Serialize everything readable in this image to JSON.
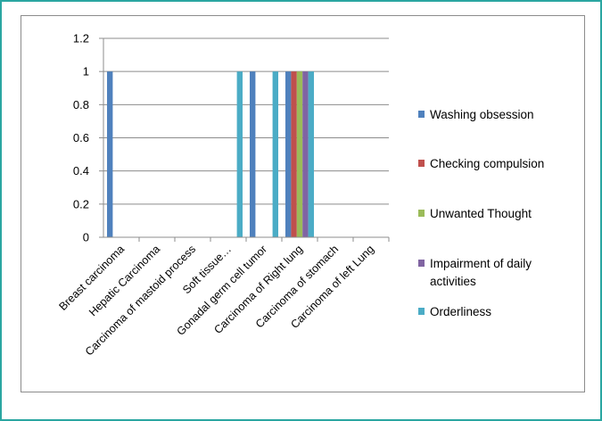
{
  "chart_data": {
    "type": "bar",
    "title": "",
    "xlabel": "",
    "ylabel": "",
    "ylim": [
      0,
      1.2
    ],
    "yticks": [
      "0",
      "0.2",
      "0.4",
      "0.6",
      "0.8",
      "1",
      "1.2"
    ],
    "grid": true,
    "legend_position": "right",
    "categories": [
      "Breast carcinoma",
      "Hepatic Carcinoma",
      "Carcinoma of mastoid  process",
      "Soft tissue…",
      "Gonadal germ cell tumor",
      "Carcinoma of Right lung",
      "Carcinoma of stomach",
      "Carcinoma of left Lung"
    ],
    "series": [
      {
        "name": "Washing obsession",
        "color": "#4f81bd",
        "values": [
          1,
          0,
          0,
          0,
          1,
          1,
          0,
          0
        ]
      },
      {
        "name": "Checking compulsion",
        "color": "#c0504d",
        "values": [
          0,
          0,
          0,
          0,
          0,
          1,
          0,
          0
        ]
      },
      {
        "name": "Unwanted Thought",
        "color": "#9bbb59",
        "values": [
          0,
          0,
          0,
          0,
          0,
          1,
          0,
          0
        ]
      },
      {
        "name": "Impairment of daily activities",
        "color": "#8064a2",
        "values": [
          0,
          0,
          0,
          0,
          0,
          1,
          0,
          0
        ]
      },
      {
        "name": "Orderliness",
        "color": "#4bacc6",
        "values": [
          0,
          0,
          0,
          1,
          1,
          1,
          0,
          0
        ]
      }
    ]
  }
}
